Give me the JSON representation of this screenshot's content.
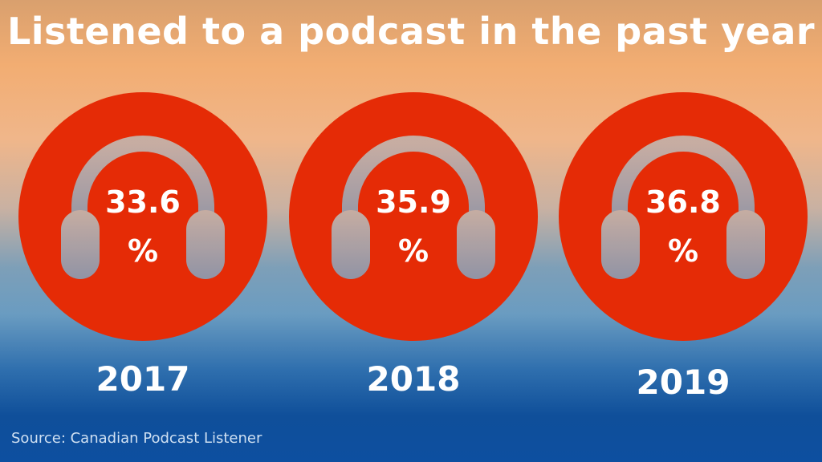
{
  "title": "Listened to a podcast in the past year",
  "source": "Source: Canadian Podcast Listener",
  "colors": {
    "circle": "#e52b06",
    "headphone": "#a3a5ad",
    "text": "#ffffff"
  },
  "icon": "headphones-icon",
  "chart_data": {
    "type": "bar",
    "categories": [
      "2017",
      "2018",
      "2019"
    ],
    "values": [
      33.6,
      35.9,
      36.8
    ],
    "value_labels": [
      "33.6",
      "35.9",
      "36.8"
    ],
    "unit": "%",
    "title": "Listened to a podcast in the past year"
  }
}
